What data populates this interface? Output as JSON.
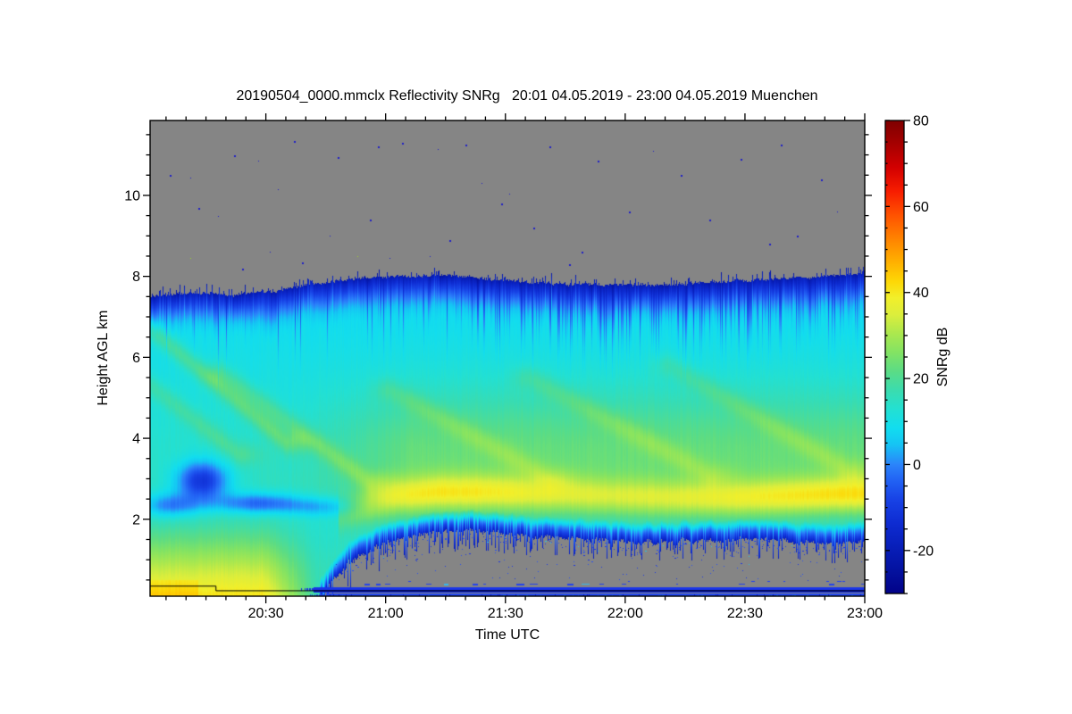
{
  "chart_data": {
    "type": "heatmap",
    "title": "20190504_0000.mmclx Reflectivity SNRg   20:01 04.05.2019 - 23:00 04.05.2019 Muenchen",
    "xlabel": "Time UTC",
    "ylabel": "Height AGL km",
    "station": "Muenchen",
    "time_start": "20:01 04.05.2019",
    "time_end": "23:00 04.05.2019",
    "x_axis": {
      "start_label": "20:01",
      "end_label": "23:00",
      "duration_min": 179,
      "tick_labels": [
        "20:30",
        "21:00",
        "21:30",
        "22:00",
        "22:30",
        "23:00"
      ],
      "tick_minutes": [
        29,
        59,
        89,
        119,
        149,
        179
      ],
      "minor_step_min": 5
    },
    "y_axis": {
      "min_km": 0.1,
      "max_km": 11.85,
      "tick_values": [
        2,
        4,
        6,
        8,
        10
      ],
      "minor_step_km": 0.5
    },
    "colorbar": {
      "label": "SNRg dB",
      "min_db": -30,
      "max_db": 80,
      "tick_values": [
        80,
        60,
        40,
        20,
        0,
        -20
      ],
      "minor_step_db": 5,
      "colormap": [
        [
          0.0,
          "#7f0000"
        ],
        [
          0.05,
          "#a60000"
        ],
        [
          0.1,
          "#d30000"
        ],
        [
          0.15,
          "#f71d00"
        ],
        [
          0.2,
          "#ff5200"
        ],
        [
          0.25,
          "#ff8300"
        ],
        [
          0.3,
          "#ffb100"
        ],
        [
          0.34,
          "#fdd706"
        ],
        [
          0.375,
          "#f2ef2a"
        ],
        [
          0.41,
          "#dcee3c"
        ],
        [
          0.45,
          "#ace84e"
        ],
        [
          0.49,
          "#83e363"
        ],
        [
          0.53,
          "#5bdc85"
        ],
        [
          0.57,
          "#3bdcae"
        ],
        [
          0.61,
          "#23e0d2"
        ],
        [
          0.65,
          "#12ddef"
        ],
        [
          0.685,
          "#15c4f4"
        ],
        [
          0.7273,
          "#2b84fa"
        ],
        [
          0.76,
          "#2263f4"
        ],
        [
          0.8,
          "#1843e6"
        ],
        [
          0.85,
          "#0e2cd2"
        ],
        [
          0.9,
          "#081fba"
        ],
        [
          0.95,
          "#0412a0"
        ],
        [
          1.0,
          "#020288"
        ]
      ]
    },
    "no_data_color": "#858585",
    "noise_seed": 7,
    "field": {
      "cloud_top_km": {
        "t": [
          0,
          10,
          20,
          30,
          40,
          50,
          60,
          75,
          90,
          105,
          120,
          135,
          150,
          160,
          170,
          179
        ],
        "h": [
          7.5,
          7.6,
          7.52,
          7.62,
          7.78,
          7.92,
          8.0,
          8.02,
          7.88,
          7.8,
          7.76,
          7.82,
          7.9,
          7.96,
          8.0,
          8.08
        ]
      },
      "cloud_base_km": {
        "t": [
          0,
          40,
          43,
          46,
          50,
          55,
          60,
          70,
          80,
          90,
          100,
          110,
          120,
          130,
          140,
          150,
          160,
          170,
          179
        ],
        "h": [
          -0.4,
          -0.35,
          0.15,
          0.6,
          1.0,
          1.3,
          1.5,
          1.7,
          1.8,
          1.68,
          1.6,
          1.55,
          1.5,
          1.48,
          1.52,
          1.55,
          1.5,
          1.47,
          1.52
        ]
      },
      "baseline_profile": {
        "h": [
          0.1,
          0.8,
          1.4,
          1.8,
          2.2,
          2.6,
          3.0,
          3.6,
          4.2,
          4.8,
          5.4,
          6.0,
          6.6,
          7.2,
          7.8,
          8.3,
          9.0
        ],
        "snr_db": [
          17,
          16,
          14,
          13,
          14,
          15,
          15,
          14,
          13,
          12,
          11,
          10,
          9,
          8,
          7,
          6,
          5
        ]
      },
      "mid_green_boost": {
        "amp_db": 9,
        "center_km": 3.7,
        "sigma_km": 1.5,
        "t_ramp": [
          35,
          65
        ]
      },
      "bright_band": {
        "t": [
          48,
          55,
          62,
          72,
          85,
          100,
          115,
          130,
          145,
          160,
          172,
          179
        ],
        "amp_db": [
          8,
          14,
          18,
          20,
          19,
          16,
          15,
          16,
          18,
          20,
          21,
          21
        ],
        "center_km": [
          2.1,
          2.35,
          2.55,
          2.65,
          2.65,
          2.6,
          2.55,
          2.5,
          2.5,
          2.55,
          2.6,
          2.6
        ],
        "sigma_km": 0.45
      },
      "ground_echo": {
        "amp_db": 25,
        "top_km": 2.3,
        "t_full": 28,
        "t_zero": 42,
        "corner_bonus_db": 4
      },
      "fall_streaks": [
        [
          0,
          6.7,
          34,
          3.9,
          9,
          0.3
        ],
        [
          0,
          5.3,
          22,
          3.6,
          6,
          0.25
        ],
        [
          18,
          5.6,
          55,
          2.9,
          7,
          0.3
        ],
        [
          60,
          5.2,
          100,
          3.0,
          5,
          0.35
        ],
        [
          95,
          5.5,
          140,
          3.1,
          5,
          0.35
        ],
        [
          130,
          5.8,
          175,
          3.2,
          5,
          0.35
        ]
      ],
      "low_snr_pockets": [
        [
          13,
          2.95,
          6.5,
          0.48,
          -26
        ],
        [
          5,
          2.35,
          7,
          0.3,
          -14
        ],
        [
          27,
          2.4,
          11,
          0.26,
          -17
        ],
        [
          43,
          2.3,
          9,
          0.24,
          -10
        ]
      ],
      "top_fringe": {
        "surface_db": -21,
        "depth_km": [
          1.0,
          2.6
        ]
      },
      "base_fringe": {
        "surface_db": -18,
        "zone_km": 0.45
      }
    },
    "interference_lines": [
      {
        "name": "dashed-line",
        "h_km": 0.4,
        "style": "dashed",
        "color": "#2443ec",
        "t_start_min": 48
      },
      {
        "name": "solid-band",
        "h_top_km": 0.315,
        "h_bot_km": 0.19,
        "style": "band",
        "color": "#1a35e8",
        "core_color": "#0a17bc",
        "t_start_min": 41
      },
      {
        "name": "bottom-band",
        "h_top_km": 0.165,
        "h_bot_km": 0.095,
        "style": "band",
        "color": "#2448ee",
        "fleck_color": "#22b8e8",
        "t_start_min": 44
      }
    ],
    "sensitivity_line": {
      "color": "#000000",
      "points_t_h": [
        [
          0,
          0.36
        ],
        [
          16.5,
          0.36
        ],
        [
          16.5,
          0.245
        ],
        [
          179,
          0.245
        ]
      ]
    },
    "speckles_upper": [
      [
        5,
        10.5,
        "#1f1fc8"
      ],
      [
        10,
        10.45,
        "#1f1fc8"
      ],
      [
        12,
        9.7,
        "#1f1fc8"
      ],
      [
        17,
        9.5,
        "#1f1fc8"
      ],
      [
        21,
        11.0,
        "#1f1fc8"
      ],
      [
        23,
        8.2,
        "#1f1fc8"
      ],
      [
        27,
        10.85,
        "#1f1fc8"
      ],
      [
        30,
        8.6,
        "#1f1fc8"
      ],
      [
        32,
        10.15,
        "#1f1fc8"
      ],
      [
        36,
        11.35,
        "#1f1fc8"
      ],
      [
        38,
        8.35,
        "#1f1fc8"
      ],
      [
        45,
        9.0,
        "#1f1fc8"
      ],
      [
        47,
        10.95,
        "#1f1fc8"
      ],
      [
        52,
        8.5,
        "#9fd42c"
      ],
      [
        55,
        9.4,
        "#1f1fc8"
      ],
      [
        57,
        11.2,
        "#1f1fc8"
      ],
      [
        60,
        8.45,
        "#1f1fc8"
      ],
      [
        63,
        11.3,
        "#1f1fc8"
      ],
      [
        70,
        8.5,
        "#1f1fc8"
      ],
      [
        72,
        11.15,
        "#1f1fc8"
      ],
      [
        75,
        8.9,
        "#1f1fc8"
      ],
      [
        79,
        11.25,
        "#1f1fc8"
      ],
      [
        83,
        10.3,
        "#1f1fc8"
      ],
      [
        88,
        9.8,
        "#1f1fc8"
      ],
      [
        90,
        10.05,
        "#1f1fc8"
      ],
      [
        96,
        9.2,
        "#1f1fc8"
      ],
      [
        100,
        11.2,
        "#1f1fc8"
      ],
      [
        105,
        8.3,
        "#1f1fc8"
      ],
      [
        108,
        8.6,
        "#1f1fc8"
      ],
      [
        112,
        10.85,
        "#1f1fc8"
      ],
      [
        120,
        9.6,
        "#1f1fc8"
      ],
      [
        126,
        11.1,
        "#1f1fc8"
      ],
      [
        133,
        10.5,
        "#1f1fc8"
      ],
      [
        140,
        9.4,
        "#1f1fc8"
      ],
      [
        148,
        10.9,
        "#1f1fc8"
      ],
      [
        155,
        8.8,
        "#1f1fc8"
      ],
      [
        158,
        11.25,
        "#1f1fc8"
      ],
      [
        162,
        9.0,
        "#1f1fc8"
      ],
      [
        168,
        10.4,
        "#1f1fc8"
      ],
      [
        172,
        9.6,
        "#1f1fc8"
      ],
      [
        10,
        8.45,
        "#9fd42c"
      ]
    ],
    "speckles_lower": {
      "count_boundary": 230,
      "count_scatter": 90,
      "colors": [
        "#1c36e0",
        "#2a50f0",
        "#28c0e8"
      ]
    }
  }
}
